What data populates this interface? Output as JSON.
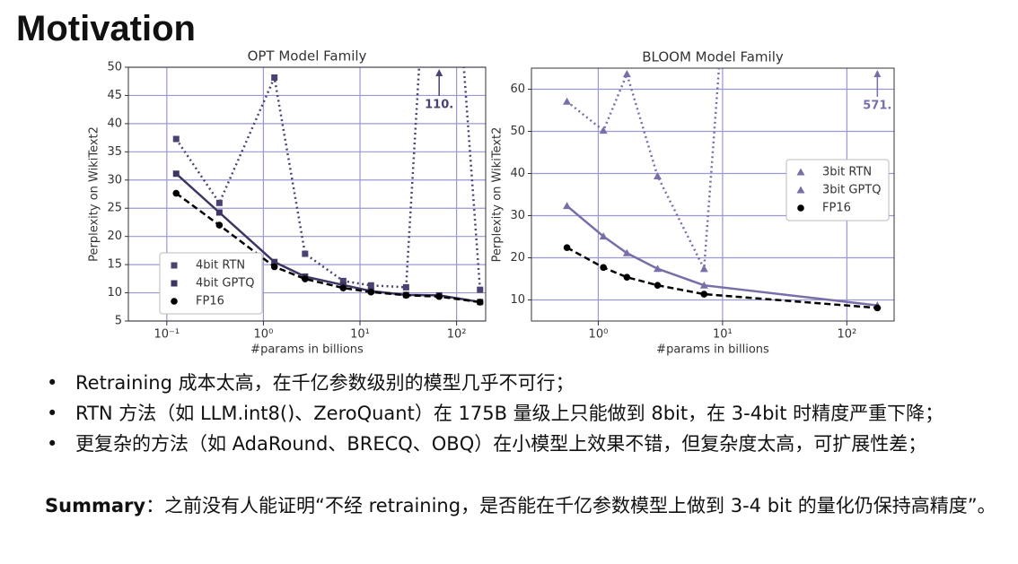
{
  "title": "Motivation",
  "chart_data": [
    {
      "type": "line",
      "title": "OPT Model Family",
      "xlabel": "#params in billions",
      "ylabel": "Perplexity on WikiText2",
      "xscale": "log",
      "grid": true,
      "legend": "lower left",
      "xlim": [
        0.04,
        200
      ],
      "xticks": [
        {
          "value": 0.1,
          "label": "10⁻¹"
        },
        {
          "value": 1,
          "label": "10⁰"
        },
        {
          "value": 10,
          "label": "10¹"
        },
        {
          "value": 100,
          "label": "10²"
        }
      ],
      "ylim": [
        5,
        50
      ],
      "yticks": [
        5,
        10,
        15,
        20,
        25,
        30,
        35,
        40,
        45,
        50
      ],
      "x": [
        0.125,
        0.35,
        1.3,
        2.7,
        6.7,
        13,
        30,
        66,
        175
      ],
      "series": [
        {
          "name": "4bit RTN",
          "color": "#4a4272",
          "linestyle": "dotted",
          "marker": "square",
          "values": [
            37.28,
            25.94,
            48.17,
            16.92,
            12.1,
            11.32,
            10.98,
            110,
            10.54
          ],
          "value_labels": [
            null,
            null,
            null,
            null,
            null,
            null,
            null,
            "110.",
            null
          ]
        },
        {
          "name": "4bit GPTQ",
          "color": "#3d3662",
          "linestyle": "solid",
          "marker": "square",
          "values": [
            31.12,
            24.24,
            15.47,
            12.87,
            11.39,
            10.31,
            9.63,
            9.55,
            8.37
          ]
        },
        {
          "name": "FP16",
          "color": "#000000",
          "linestyle": "dashed",
          "marker": "circle",
          "values": [
            27.65,
            22.0,
            14.62,
            12.47,
            10.86,
            10.13,
            9.56,
            9.34,
            8.34
          ]
        }
      ]
    },
    {
      "type": "line",
      "title": "BLOOM Model Family",
      "xlabel": "#params in billions",
      "ylabel": "Perplexity on WikiText2",
      "xscale": "log",
      "grid": true,
      "legend": "center right",
      "xlim": [
        0.29,
        240
      ],
      "xticks": [
        {
          "value": 1,
          "label": "10⁰"
        },
        {
          "value": 10,
          "label": "10¹"
        },
        {
          "value": 100,
          "label": "10²"
        }
      ],
      "ylim": [
        5,
        65
      ],
      "yticks": [
        10,
        20,
        30,
        40,
        50,
        60
      ],
      "x": [
        0.56,
        1.1,
        1.7,
        3,
        7.1,
        176
      ],
      "series": [
        {
          "name": "3bit RTN",
          "color": "#7a6ea8",
          "linestyle": "dotted",
          "marker": "triangle",
          "values": [
            57.08,
            50.19,
            63.59,
            39.36,
            17.38,
            571
          ],
          "value_labels": [
            null,
            null,
            null,
            null,
            null,
            "571."
          ]
        },
        {
          "name": "3bit GPTQ",
          "color": "#7a6ea8",
          "linestyle": "solid",
          "marker": "triangle",
          "values": [
            32.31,
            25.08,
            21.11,
            17.4,
            13.47,
            8.69
          ]
        },
        {
          "name": "FP16",
          "color": "#000000",
          "linestyle": "dashed",
          "marker": "circle",
          "values": [
            22.42,
            17.69,
            15.39,
            13.48,
            11.37,
            8.11
          ]
        }
      ]
    }
  ],
  "bullets": [
    "Retraining 成本太高，在千亿参数级别的模型几乎不可行；",
    "RTN 方法（如 LLM.int8()、ZeroQuant）在 175B 量级上只能做到 8bit，在 3-4bit 时精度严重下降；",
    "更复杂的方法（如 AdaRound、BRECQ、OBQ）在小模型上效果不错，但复杂度太高，可扩展性差；"
  ],
  "summary": {
    "label": "Summary",
    "text": "：之前没有人能证明“不经 retraining，是否能在千亿参数模型上做到 3-4 bit 的量化仍保持高精度”。"
  }
}
